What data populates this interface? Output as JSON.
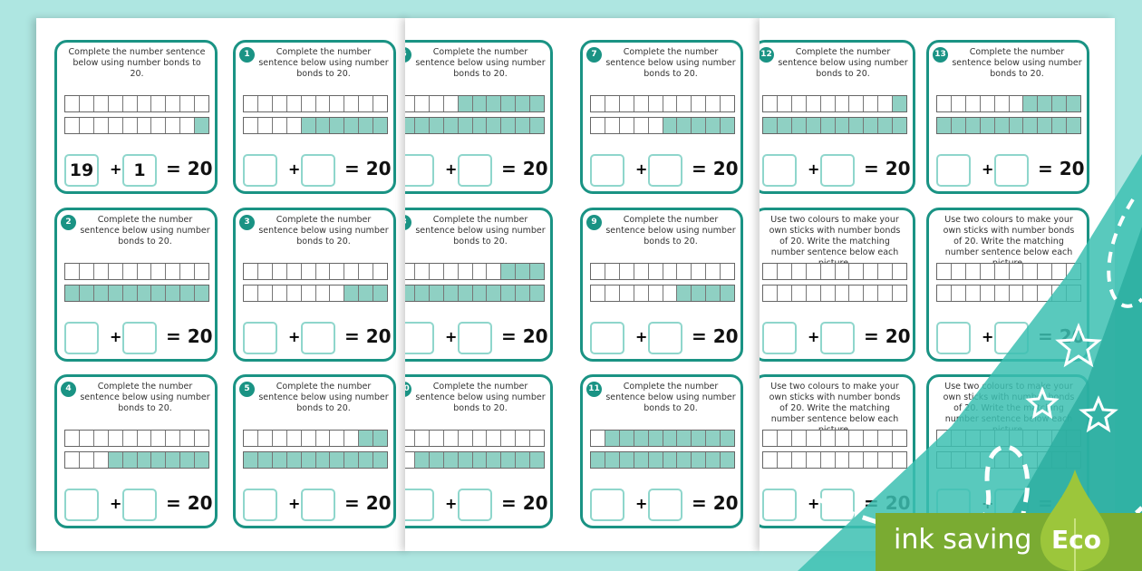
{
  "colors": {
    "background": "#aee6e1",
    "card_border": "#1a9384",
    "shaded": "#8fd0c3",
    "eco_green": "#7aab32"
  },
  "instruction_complete": "Complete the number sentence below using number bonds to 20.",
  "instruction_colours": "Use two colours to make your own sticks with number bonds of 20. Write the matching number sentence below each picture.",
  "total": "= 20",
  "plus": "+",
  "pages": [
    {
      "cards": [
        {
          "number": "",
          "kind": "complete",
          "top_shaded": 0,
          "bottom_shaded": 1,
          "answer_a": "19",
          "answer_b": "1"
        },
        {
          "number": "1",
          "kind": "complete",
          "top_shaded": 0,
          "bottom_shaded": 6,
          "answer_a": "",
          "answer_b": ""
        },
        {
          "number": "2",
          "kind": "complete",
          "top_shaded": 0,
          "bottom_shaded": 10,
          "answer_a": "",
          "answer_b": ""
        },
        {
          "number": "3",
          "kind": "complete",
          "top_shaded": 0,
          "bottom_shaded": 3,
          "answer_a": "",
          "answer_b": ""
        },
        {
          "number": "4",
          "kind": "complete",
          "top_shaded": 0,
          "bottom_shaded": 7,
          "answer_a": "",
          "answer_b": ""
        },
        {
          "number": "5",
          "kind": "complete",
          "top_shaded": 2,
          "bottom_shaded": 10,
          "answer_a": "",
          "answer_b": ""
        }
      ]
    },
    {
      "cards": [
        {
          "number": "6",
          "kind": "complete",
          "top_shaded": 6,
          "bottom_shaded": 10,
          "answer_a": "",
          "answer_b": ""
        },
        {
          "number": "7",
          "kind": "complete",
          "top_shaded": 0,
          "bottom_shaded": 5,
          "answer_a": "",
          "answer_b": ""
        },
        {
          "number": "8",
          "kind": "complete",
          "top_shaded": 3,
          "bottom_shaded": 10,
          "answer_a": "",
          "answer_b": ""
        },
        {
          "number": "9",
          "kind": "complete",
          "top_shaded": 0,
          "bottom_shaded": 4,
          "answer_a": "",
          "answer_b": ""
        },
        {
          "number": "10",
          "kind": "complete",
          "top_shaded": 0,
          "bottom_shaded": 9,
          "answer_a": "",
          "answer_b": ""
        },
        {
          "number": "11",
          "kind": "complete",
          "top_shaded": 9,
          "bottom_shaded": 10,
          "answer_a": "",
          "answer_b": ""
        }
      ]
    },
    {
      "cards": [
        {
          "number": "12",
          "kind": "complete",
          "top_shaded": 1,
          "bottom_shaded": 10,
          "answer_a": "",
          "answer_b": ""
        },
        {
          "number": "13",
          "kind": "complete",
          "top_shaded": 4,
          "bottom_shaded": 10,
          "answer_a": "",
          "answer_b": ""
        },
        {
          "number": "",
          "kind": "colours",
          "top_shaded": 0,
          "bottom_shaded": 0,
          "answer_a": "",
          "answer_b": ""
        },
        {
          "number": "",
          "kind": "colours",
          "top_shaded": 0,
          "bottom_shaded": 0,
          "answer_a": "",
          "answer_b": ""
        },
        {
          "number": "",
          "kind": "colours",
          "top_shaded": 0,
          "bottom_shaded": 0,
          "answer_a": "",
          "answer_b": ""
        },
        {
          "number": "",
          "kind": "colours",
          "top_shaded": 0,
          "bottom_shaded": 0,
          "answer_a": "",
          "answer_b": ""
        }
      ]
    }
  ],
  "badge": {
    "label": "ink saving",
    "eco": "Eco"
  }
}
